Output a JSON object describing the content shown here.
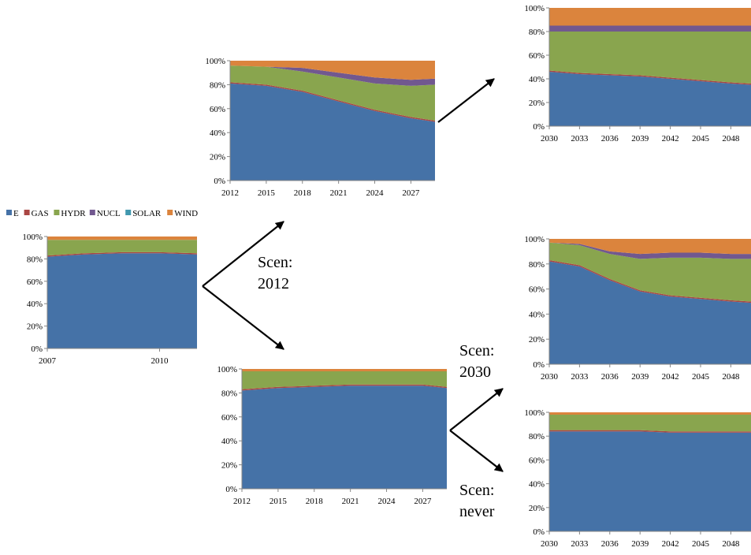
{
  "legend": [
    {
      "key": "E",
      "label": "E",
      "color": "#4572A7"
    },
    {
      "key": "GAS",
      "label": "GAS",
      "color": "#AA4643"
    },
    {
      "key": "HYDR",
      "label": "HYDR",
      "color": "#89A54E"
    },
    {
      "key": "NUCL",
      "label": "NUCL",
      "color": "#71588F"
    },
    {
      "key": "SOLAR",
      "label": "SOLAR",
      "color": "#4198AF"
    },
    {
      "key": "WIND",
      "label": "WIND",
      "color": "#DB843D"
    }
  ],
  "scenario_labels": [
    {
      "id": "scen-2012",
      "lines": [
        "Scen:",
        "2012"
      ]
    },
    {
      "id": "scen-2030",
      "lines": [
        "Scen:",
        "2030"
      ]
    },
    {
      "id": "scen-never",
      "lines": [
        "Scen:",
        "never"
      ]
    }
  ],
  "chart_data": [
    {
      "id": "historic",
      "type": "area",
      "stacking": "percent",
      "yticks": [
        "0%",
        "20%",
        "40%",
        "60%",
        "80%",
        "100%"
      ],
      "xticks": [
        "2007",
        "2010"
      ],
      "ylim": [
        0,
        100
      ],
      "x": [
        2007,
        2008,
        2009,
        2010,
        2011
      ],
      "series": [
        {
          "name": "E",
          "values": [
            82,
            84,
            85,
            85,
            84
          ]
        },
        {
          "name": "GAS",
          "values": [
            1,
            1,
            1,
            1,
            1
          ]
        },
        {
          "name": "HYDR",
          "values": [
            14,
            12,
            11,
            11,
            12
          ]
        },
        {
          "name": "NUCL",
          "values": [
            0,
            0,
            0,
            0,
            0
          ]
        },
        {
          "name": "SOLAR",
          "values": [
            0,
            0,
            0,
            0,
            0
          ]
        },
        {
          "name": "WIND",
          "values": [
            3,
            3,
            3,
            3,
            3
          ]
        }
      ]
    },
    {
      "id": "scen2012-2012-2029",
      "type": "area",
      "stacking": "percent",
      "yticks": [
        "0%",
        "20%",
        "40%",
        "60%",
        "80%",
        "100%"
      ],
      "xticks": [
        "2012",
        "2015",
        "2018",
        "2021",
        "2024",
        "2027"
      ],
      "ylim": [
        0,
        100
      ],
      "x": [
        2012,
        2015,
        2018,
        2021,
        2024,
        2027,
        2029
      ],
      "series": [
        {
          "name": "E",
          "values": [
            81,
            79,
            74,
            66,
            58,
            52,
            49
          ]
        },
        {
          "name": "GAS",
          "values": [
            1,
            1,
            1,
            1,
            1,
            1,
            1
          ]
        },
        {
          "name": "HYDR",
          "values": [
            14,
            15,
            16,
            19,
            22,
            26,
            30
          ]
        },
        {
          "name": "NUCL",
          "values": [
            0,
            0,
            3,
            4,
            5,
            5,
            5
          ]
        },
        {
          "name": "SOLAR",
          "values": [
            0,
            0,
            0,
            0,
            0,
            0,
            0
          ]
        },
        {
          "name": "WIND",
          "values": [
            4,
            5,
            6,
            10,
            14,
            16,
            15
          ]
        }
      ]
    },
    {
      "id": "scen2012-2030-2050",
      "type": "area",
      "stacking": "percent",
      "yticks": [
        "0%",
        "20%",
        "40%",
        "60%",
        "80%",
        "100%"
      ],
      "xticks": [
        "2030",
        "2033",
        "2036",
        "2039",
        "2042",
        "2045",
        "2048"
      ],
      "ylim": [
        0,
        100
      ],
      "x": [
        2030,
        2033,
        2036,
        2039,
        2042,
        2045,
        2048,
        2050
      ],
      "series": [
        {
          "name": "E",
          "values": [
            46,
            44,
            43,
            42,
            40,
            38,
            36,
            35
          ]
        },
        {
          "name": "GAS",
          "values": [
            1,
            1,
            1,
            1,
            1,
            1,
            1,
            1
          ]
        },
        {
          "name": "HYDR",
          "values": [
            33,
            35,
            36,
            37,
            39,
            41,
            43,
            44
          ]
        },
        {
          "name": "NUCL",
          "values": [
            5,
            5,
            5,
            5,
            5,
            5,
            5,
            5
          ]
        },
        {
          "name": "SOLAR",
          "values": [
            0,
            0,
            0,
            0,
            0,
            0,
            0,
            0
          ]
        },
        {
          "name": "WIND",
          "values": [
            15,
            15,
            15,
            15,
            15,
            15,
            15,
            15
          ]
        }
      ]
    },
    {
      "id": "scen-no2012-2012-2029",
      "type": "area",
      "stacking": "percent",
      "yticks": [
        "0%",
        "20%",
        "40%",
        "60%",
        "80%",
        "100%"
      ],
      "xticks": [
        "2012",
        "2015",
        "2018",
        "2021",
        "2024",
        "2027"
      ],
      "ylim": [
        0,
        100
      ],
      "x": [
        2012,
        2015,
        2018,
        2021,
        2024,
        2027,
        2029
      ],
      "series": [
        {
          "name": "E",
          "values": [
            82,
            84,
            85,
            86,
            86,
            86,
            84
          ]
        },
        {
          "name": "GAS",
          "values": [
            1,
            1,
            1,
            1,
            1,
            1,
            1
          ]
        },
        {
          "name": "HYDR",
          "values": [
            15,
            13,
            12,
            11,
            11,
            11,
            13
          ]
        },
        {
          "name": "NUCL",
          "values": [
            0,
            0,
            0,
            0,
            0,
            0,
            0
          ]
        },
        {
          "name": "SOLAR",
          "values": [
            0,
            0,
            0,
            0,
            0,
            0,
            0
          ]
        },
        {
          "name": "WIND",
          "values": [
            2,
            2,
            2,
            2,
            2,
            2,
            2
          ]
        }
      ]
    },
    {
      "id": "scen2030-2030-2050",
      "type": "area",
      "stacking": "percent",
      "yticks": [
        "0%",
        "20%",
        "40%",
        "60%",
        "80%",
        "100%"
      ],
      "xticks": [
        "2030",
        "2033",
        "2036",
        "2039",
        "2042",
        "2045",
        "2048"
      ],
      "ylim": [
        0,
        100
      ],
      "x": [
        2030,
        2033,
        2036,
        2039,
        2042,
        2045,
        2048,
        2050
      ],
      "series": [
        {
          "name": "E",
          "values": [
            82,
            78,
            67,
            58,
            54,
            52,
            50,
            49
          ]
        },
        {
          "name": "GAS",
          "values": [
            1,
            1,
            1,
            1,
            1,
            1,
            1,
            1
          ]
        },
        {
          "name": "HYDR",
          "values": [
            14,
            16,
            20,
            25,
            30,
            32,
            33,
            34
          ]
        },
        {
          "name": "NUCL",
          "values": [
            0,
            1,
            2,
            4,
            4,
            4,
            4,
            4
          ]
        },
        {
          "name": "SOLAR",
          "values": [
            0,
            0,
            0,
            0,
            0,
            0,
            0,
            0
          ]
        },
        {
          "name": "WIND",
          "values": [
            3,
            4,
            10,
            12,
            11,
            11,
            12,
            12
          ]
        }
      ]
    },
    {
      "id": "scen-never-2030-2050",
      "type": "area",
      "stacking": "percent",
      "yticks": [
        "0%",
        "20%",
        "40%",
        "60%",
        "80%",
        "100%"
      ],
      "xticks": [
        "2030",
        "2033",
        "2036",
        "2039",
        "2042",
        "2045",
        "2048"
      ],
      "ylim": [
        0,
        100
      ],
      "x": [
        2030,
        2033,
        2036,
        2039,
        2042,
        2045,
        2048,
        2050
      ],
      "series": [
        {
          "name": "E",
          "values": [
            84,
            84,
            84,
            84,
            83,
            83,
            83,
            83
          ]
        },
        {
          "name": "GAS",
          "values": [
            1,
            1,
            1,
            1,
            1,
            1,
            1,
            1
          ]
        },
        {
          "name": "HYDR",
          "values": [
            13,
            13,
            13,
            13,
            14,
            14,
            14,
            14
          ]
        },
        {
          "name": "NUCL",
          "values": [
            0,
            0,
            0,
            0,
            0,
            0,
            0,
            0
          ]
        },
        {
          "name": "SOLAR",
          "values": [
            0,
            0,
            0,
            0,
            0,
            0,
            0,
            0
          ]
        },
        {
          "name": "WIND",
          "values": [
            2,
            2,
            2,
            2,
            2,
            2,
            2,
            2
          ]
        }
      ]
    }
  ]
}
